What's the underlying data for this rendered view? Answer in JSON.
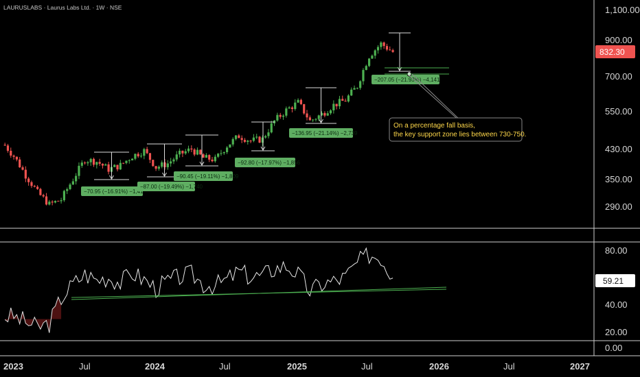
{
  "header": {
    "symbol_line": "LAURUSLABS · Laurus Labs Ltd. · 1W · NSE"
  },
  "colors": {
    "background": "#000000",
    "up": "#4caf50",
    "down": "#ef5350",
    "measure_box": "#5fae62",
    "support_line": "#2e7d32",
    "current_price": "#ef5350",
    "annotation_border": "#888888",
    "annotation_text": "#ffd84a"
  },
  "price_axis": {
    "labels": [
      "1,100.00",
      "900.00",
      "700.00",
      "550.00",
      "430.00",
      "350.00",
      "290.00"
    ],
    "current_price_label": "832.30"
  },
  "rsi_axis": {
    "labels": [
      "80.00",
      "40.00",
      "20.00",
      "0.00"
    ],
    "current_label": "59.21"
  },
  "time_axis": {
    "labels": [
      "2023",
      "Jul",
      "2024",
      "Jul",
      "2025",
      "Jul",
      "2026",
      "Jul",
      "2027"
    ]
  },
  "measurements": [
    {
      "text": "−70.95 (−16.91%) −1,41"
    },
    {
      "text": "−87.00 (−19.49%) −1,740"
    },
    {
      "text": "−90.45 (−19.11%) −1,809"
    },
    {
      "text": "−92.80 (−17.97%) −1,856"
    },
    {
      "text": "−136.95 (−21.14%) −2,739"
    },
    {
      "text": "−207.05 (−21.93%) −4,141"
    }
  ],
  "annotation": {
    "line1": "On a percentage fall basis,",
    "line2": "the key support zone lies between 730-750."
  },
  "chart_data": {
    "type": "candlestick",
    "title": "LAURUSLABS · Laurus Labs Ltd. · 1W · NSE",
    "y_scale": "log",
    "ylim": [
      260,
      1100
    ],
    "x": [
      "2023-01",
      "2023-02",
      "2023-03",
      "2023-04",
      "2023-05",
      "2023-06",
      "2023-07",
      "2023-08",
      "2023-09",
      "2023-10",
      "2023-11",
      "2023-12",
      "2024-01",
      "2024-02",
      "2024-03",
      "2024-04",
      "2024-05",
      "2024-06",
      "2024-07",
      "2024-08",
      "2024-09",
      "2024-10",
      "2024-11",
      "2024-12",
      "2025-01",
      "2025-02",
      "2025-03",
      "2025-04",
      "2025-05",
      "2025-06",
      "2025-07",
      "2025-08",
      "2025-09"
    ],
    "close": [
      410,
      360,
      320,
      295,
      305,
      350,
      400,
      395,
      375,
      385,
      410,
      425,
      380,
      390,
      415,
      430,
      405,
      400,
      440,
      470,
      455,
      460,
      520,
      560,
      590,
      520,
      545,
      580,
      600,
      660,
      810,
      880,
      832.3
    ],
    "series": [
      {
        "name": "RSI",
        "values": [
          32,
          28,
          24,
          27,
          45,
          55,
          62,
          58,
          60,
          56,
          63,
          58,
          52,
          57,
          60,
          62,
          55,
          54,
          58,
          64,
          60,
          61,
          66,
          68,
          62,
          50,
          55,
          57,
          60,
          70,
          76,
          74,
          59.21
        ]
      }
    ],
    "rsi_ylim": [
      0,
      90
    ],
    "current_price": 832.3,
    "current_rsi": 59.21,
    "support_zone": [
      730,
      750
    ],
    "grid": false
  }
}
